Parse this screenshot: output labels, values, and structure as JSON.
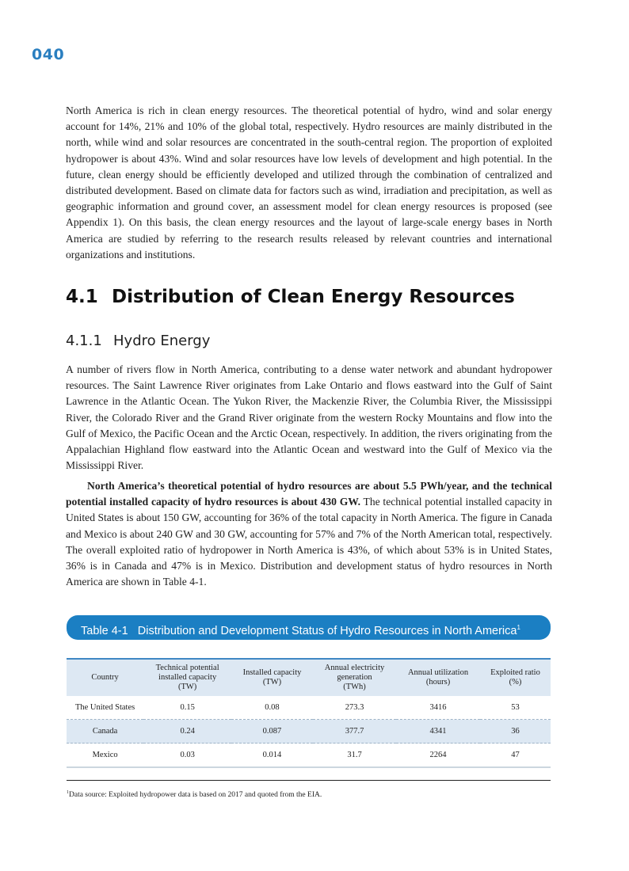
{
  "page_number": "040",
  "intro_paragraph": "North America is rich in clean energy resources. The theoretical potential of hydro, wind and solar energy account for 14%, 21% and 10% of the global total, respectively. Hydro resources are mainly distributed in the north, while wind and solar resources are concentrated in the south-central region. The proportion of exploited hydropower is about 43%. Wind and solar resources have low levels of development and high potential. In the future, clean energy should be efficiently developed and utilized through the combination of centralized and distributed development. Based on climate data for factors such as wind, irradiation and precipitation, as well as geographic information and ground cover, an assessment model for clean energy resources is proposed (see Appendix 1). On this basis, the clean energy resources and the layout of large-scale energy bases in North America are studied by referring to the research results released by relevant countries and international organizations and institutions.",
  "section": {
    "number": "4.1",
    "title": "Distribution of Clean Energy Resources"
  },
  "subsection": {
    "number": "4.1.1",
    "title": "Hydro Energy"
  },
  "paragraph_2": "A number of rivers flow in North America, contributing to a dense water network and abundant hydropower resources. The Saint Lawrence River originates from Lake Ontario and flows eastward into the Gulf of Saint Lawrence in the Atlantic Ocean. The Yukon River, the Mackenzie River, the Columbia River, the Mississippi River, the Colorado River and the Grand River originate from the western Rocky Mountains and flow into the Gulf of Mexico, the Pacific Ocean and the Arctic Ocean, respectively. In addition, the rivers originating from the Appalachian Highland flow eastward into the Atlantic Ocean and westward into the Gulf of Mexico via the Mississippi River.",
  "paragraph_3_bold": "North America’s theoretical potential of hydro resources are about 5.5 PWh/year, and the technical potential installed capacity of hydro resources is about 430 GW.",
  "paragraph_3_rest": " The technical potential installed capacity in United States is about 150 GW, accounting for 36% of the total capacity in North America. The figure in Canada and Mexico is about 240 GW and 30 GW, accounting for 57% and 7% of the North American total, respectively. The overall exploited ratio of hydropower in North America is 43%, of which about 53% is in United States, 36% is in Canada and 47% is in Mexico. Distribution and development status of hydro resources in North America are shown in Table 4-1.",
  "table": {
    "caption_label": "Table 4-1",
    "caption_title": "Distribution and Development Status of Hydro Resources in North America",
    "caption_footnote_mark": "1",
    "headers": [
      [
        "Country"
      ],
      [
        "Technical potential",
        "installed capacity",
        "(TW)"
      ],
      [
        "Installed capacity",
        "(TW)"
      ],
      [
        "Annual electricity",
        "generation",
        "(TWh)"
      ],
      [
        "Annual utilization",
        "(hours)"
      ],
      [
        "Exploited ratio",
        "(%)"
      ]
    ],
    "rows": [
      [
        "The United States",
        "0.15",
        "0.08",
        "273.3",
        "3416",
        "53"
      ],
      [
        "Canada",
        "0.24",
        "0.087",
        "377.7",
        "4341",
        "36"
      ],
      [
        "Mexico",
        "0.03",
        "0.014",
        "31.7",
        "2264",
        "47"
      ]
    ]
  },
  "footnote": {
    "mark": "1",
    "text": "Data source: Exploited hydropower data is based on 2017 and quoted from the EIA."
  },
  "colors": {
    "accent": "#1b7fc3",
    "table_shade": "#dde8f3"
  }
}
